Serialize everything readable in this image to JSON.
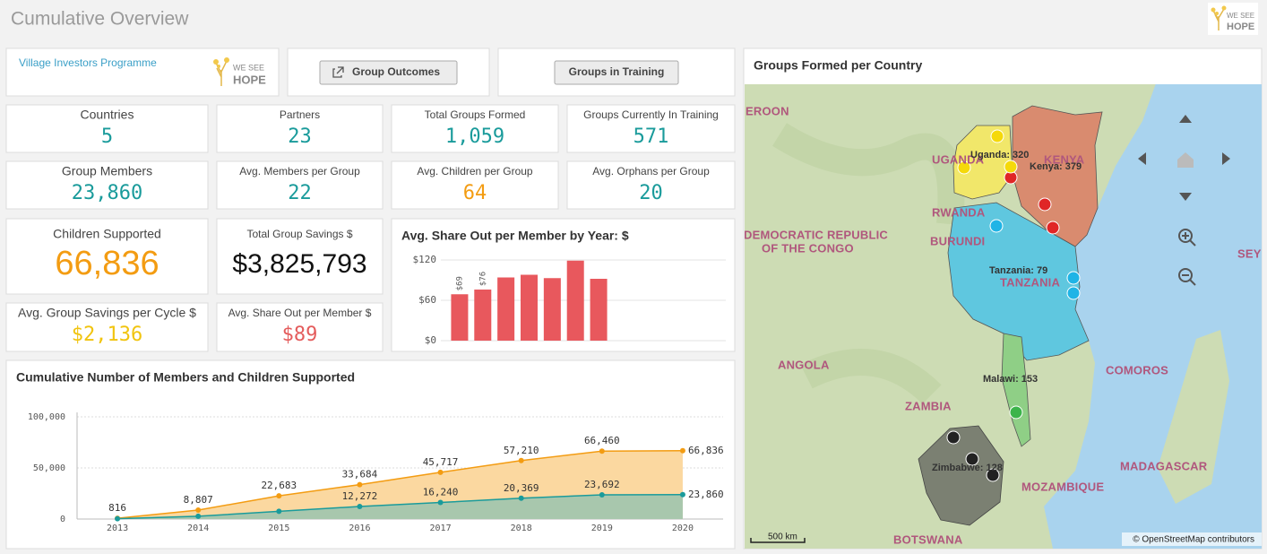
{
  "header": {
    "title": "Cumulative Overview",
    "logo": [
      "WE SEE",
      "HOPE"
    ]
  },
  "nav": {
    "programme": "Village Investors Programme",
    "logo": [
      "WE SEE",
      "HOPE"
    ],
    "buttons": [
      "Group Outcomes",
      "Groups in Training"
    ]
  },
  "kpis": [
    {
      "label": "Countries",
      "value": "5",
      "color": "#1a9b9b"
    },
    {
      "label": "Partners",
      "value": "23",
      "color": "#1a9b9b"
    },
    {
      "label": "Total Groups Formed",
      "value": "1,059",
      "color": "#1a9b9b"
    },
    {
      "label": "Groups Currently In Training",
      "value": "571",
      "color": "#1a9b9b"
    },
    {
      "label": "Group Members",
      "value": "23,860",
      "color": "#1a9b9b"
    },
    {
      "label": "Avg. Members per Group",
      "value": "22",
      "color": "#1a9b9b"
    },
    {
      "label": "Avg. Children per Group",
      "value": "64",
      "color": "#f39c12"
    },
    {
      "label": "Avg. Orphans per Group",
      "value": "20",
      "color": "#1a9b9b"
    },
    {
      "label": "Children Supported",
      "value": "66,836",
      "color": "#f39c12"
    },
    {
      "label": "Total Group Savings $",
      "value": "$3,825,793",
      "color": "#111111"
    },
    {
      "label": "Avg. Group Savings per Cycle $",
      "value": "$2,136",
      "color": "#f1c40f"
    },
    {
      "label": "Avg. Share Out per Member $",
      "value": "$89",
      "color": "#e45c5c"
    }
  ],
  "chart_data": [
    {
      "type": "bar",
      "title": "Avg. Share Out per Member by Year: $",
      "categories": [
        null,
        null,
        null,
        null,
        null,
        null,
        null
      ],
      "values": [
        69,
        76,
        94,
        98,
        93,
        119,
        92
      ],
      "value_labels": [
        "$69",
        "$76",
        null,
        null,
        null,
        null,
        null
      ],
      "color": "#e8585d",
      "ylim": [
        0,
        128
      ],
      "yticks": [
        {
          "value": 0,
          "label": "$0"
        },
        {
          "value": 60,
          "label": "$60"
        },
        {
          "value": 120,
          "label": "$120"
        }
      ],
      "grid": true
    },
    {
      "type": "area",
      "title": "Cumulative Number of Members and Children Supported",
      "categories": [
        "2013",
        "2014",
        "2015",
        "2016",
        "2017",
        "2018",
        "2019",
        "2020"
      ],
      "series": [
        {
          "color": "#f39c12",
          "fill": "#fbd8a0",
          "values": [
            816,
            8807,
            22683,
            33684,
            45717,
            57210,
            66460,
            66836
          ],
          "value_labels": [
            "816",
            "8,807",
            "22,683",
            "33,684",
            "45,717",
            "57,210",
            "66,460",
            "66,836"
          ]
        },
        {
          "color": "#1a9b9b",
          "fill": "#a8c7ad",
          "values": [
            300,
            2700,
            7600,
            12272,
            16240,
            20369,
            23692,
            23860
          ],
          "value_labels": [
            null,
            null,
            null,
            "12,272",
            "16,240",
            "20,369",
            "23,692",
            "23,860"
          ]
        }
      ],
      "ylim": [
        0,
        100000
      ],
      "yticks": [
        0,
        {
          "value": 50000,
          "label": "50,000"
        },
        {
          "value": 100000,
          "label": "100,000"
        }
      ],
      "grid": true
    }
  ],
  "map": {
    "title": "Groups Formed per Country",
    "places": [
      "EROON",
      "UGANDA",
      "KENYA",
      "RWANDA",
      "BURUNDI",
      "DEMOCRATIC REPUBLIC",
      "OF THE CONGO",
      "TANZANIA",
      "ANGOLA",
      "ZAMBIA",
      "COMOROS",
      "SEY",
      "MADAGASCAR",
      "MOZAMBIQUE",
      "BOTSWANA"
    ],
    "markers": [
      "Uganda: 320",
      "Kenya: 379",
      "Tanzania: 79",
      "Malawi: 153",
      "Zimbabwe: 128"
    ],
    "scale": "500 km",
    "attribution": "© OpenStreetMap contributors"
  }
}
